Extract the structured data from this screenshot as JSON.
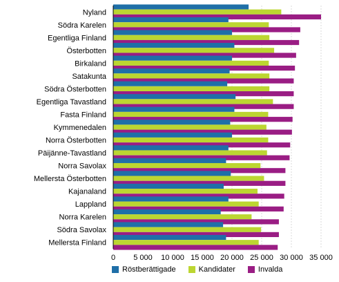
{
  "chart_data": {
    "type": "bar",
    "orientation": "horizontal",
    "title": "",
    "xlabel": "",
    "ylabel": "",
    "xlim": [
      0,
      35000
    ],
    "xticks": [
      0,
      5000,
      10000,
      15000,
      20000,
      25000,
      30000,
      35000
    ],
    "xtick_labels": [
      "0",
      "5 000",
      "10 000",
      "15 000",
      "20 000",
      "25 000",
      "30 000",
      "35 000"
    ],
    "grid": true,
    "legend_position": "bottom",
    "categories": [
      "Nyland",
      "Södra Karelen",
      "Egentliga Finland",
      "Österbotten",
      "Birkaland",
      "Satakunta",
      "Södra Österbotten",
      "Egentliga Tavastland",
      "Fasta Finland",
      "Kymmenedalen",
      "Norra Österbotten",
      "Päijänne-Tavastland",
      "Norra Savolax",
      "Mellersta Österbotten",
      "Kajanaland",
      "Lappland",
      "Norra Karelen",
      "Södra Savolax",
      "Mellersta Finland"
    ],
    "series": [
      {
        "name": "Röstberättigade",
        "color": "#1f6fa8",
        "values": [
          22800,
          19400,
          20000,
          20400,
          20000,
          19600,
          19200,
          20600,
          20400,
          19700,
          20000,
          19400,
          19000,
          19800,
          18600,
          19400,
          18100,
          18500,
          19000
        ]
      },
      {
        "name": "Kandidater",
        "color": "#bcd631",
        "values": [
          28300,
          26200,
          26300,
          27100,
          26200,
          26300,
          26300,
          26900,
          26100,
          25800,
          26100,
          25900,
          24800,
          25400,
          24300,
          24500,
          23300,
          24900,
          24500
        ]
      },
      {
        "name": "Invalda",
        "color": "#9a1d84",
        "values": [
          35000,
          31500,
          31300,
          30800,
          30600,
          30400,
          30400,
          30400,
          30200,
          30100,
          29800,
          29700,
          29000,
          29000,
          28800,
          28700,
          27900,
          27900,
          27700
        ]
      }
    ]
  }
}
